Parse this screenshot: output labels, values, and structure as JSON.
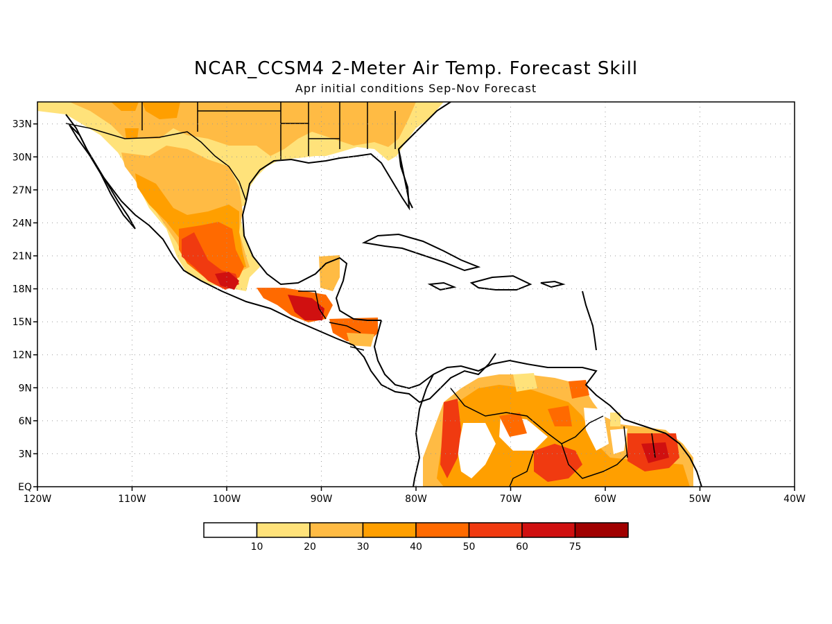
{
  "title": "NCAR_CCSM4 2-Meter Air Temp. Forecast Skill",
  "subtitle": "Apr initial conditions   Sep-Nov Forecast",
  "map": {
    "lon_range": [
      -120,
      -40
    ],
    "lat_range": [
      0,
      35
    ],
    "x_ticks": [
      "120W",
      "110W",
      "100W",
      "90W",
      "80W",
      "70W",
      "60W",
      "50W",
      "40W"
    ],
    "y_ticks": [
      "EQ",
      "3N",
      "6N",
      "9N",
      "12N",
      "15N",
      "18N",
      "21N",
      "24N",
      "27N",
      "30N",
      "33N"
    ],
    "grid": "dotted"
  },
  "legend": {
    "labels": [
      "10",
      "20",
      "30",
      "40",
      "50",
      "60",
      "75"
    ],
    "colors": [
      "#ffffff",
      "#ffe27a",
      "#ffbb44",
      "#ff9f00",
      "#ff6a00",
      "#f03a10",
      "#d01010",
      "#a00000"
    ]
  }
}
